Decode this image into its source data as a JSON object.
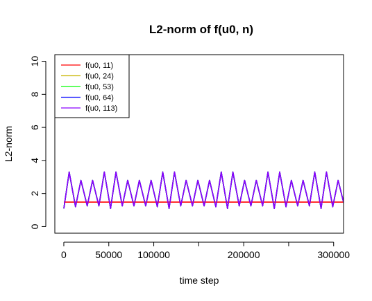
{
  "chart_data": {
    "type": "line",
    "title": "L2-norm of f(u0, n)",
    "xlabel": "time step",
    "ylabel": "L2-norm",
    "xlim": [
      -10000,
      311000
    ],
    "ylim": [
      -0.4,
      10.4
    ],
    "x_ticks": [
      0,
      50000,
      100000,
      150000,
      200000,
      250000,
      300000
    ],
    "x_tick_labels": [
      "0",
      "50000",
      "100000",
      "",
      "200000",
      "",
      "300000"
    ],
    "y_ticks": [
      0,
      2,
      4,
      6,
      8,
      10
    ],
    "y_tick_labels": [
      "0",
      "2",
      "4",
      "6",
      "8",
      "10"
    ],
    "grid": false,
    "legend_position": "top-left",
    "series": [
      {
        "name": "f(u0, 11)",
        "color": "#ff0000",
        "shape": "flat",
        "value": 1.48
      },
      {
        "name": "f(u0, 24)",
        "color": "#c8b400",
        "shape": "oscillating"
      },
      {
        "name": "f(u0, 53)",
        "color": "#00ff00",
        "shape": "oscillating"
      },
      {
        "name": "f(u0, 64)",
        "color": "#0000ff",
        "shape": "oscillating"
      },
      {
        "name": "f(u0, 113)",
        "color": "#8b00ff",
        "shape": "oscillating"
      }
    ],
    "oscillation": {
      "x_start": 0,
      "x_end": 311000,
      "start_value": 1.1,
      "period": 13000,
      "peak_offset": 6000,
      "peaks": [
        3.3,
        2.8,
        2.8,
        3.3,
        3.3,
        2.8,
        2.8,
        2.8,
        3.3,
        3.3,
        2.8,
        2.8,
        2.8,
        3.3,
        3.3,
        2.8,
        2.8,
        3.3,
        3.3,
        2.8,
        2.8,
        3.3,
        3.3,
        2.8,
        2.9
      ],
      "troughs": [
        1.2,
        1.25,
        1.25,
        1.1,
        1.25,
        1.25,
        1.25,
        1.2,
        1.1,
        1.25,
        1.25,
        1.25,
        1.2,
        1.1,
        1.25,
        1.25,
        1.25,
        1.1,
        1.2,
        1.25,
        1.25,
        1.1,
        1.2,
        1.25,
        1.3
      ]
    }
  }
}
